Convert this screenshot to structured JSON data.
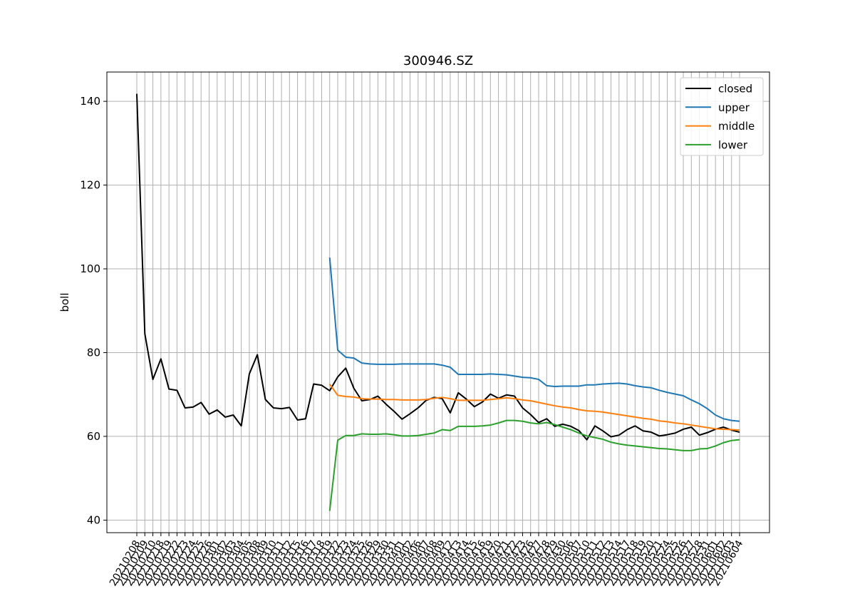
{
  "chart_data": {
    "type": "line",
    "title": "300946.SZ",
    "xlabel": "",
    "ylabel": "boll",
    "ylim": [
      37,
      147
    ],
    "yticks": [
      40,
      60,
      80,
      100,
      120,
      140
    ],
    "grid": true,
    "legend_position": "top-right",
    "x": [
      "20210208",
      "20210209",
      "20210210",
      "20210218",
      "20210219",
      "20210222",
      "20210223",
      "20210224",
      "20210225",
      "20210226",
      "20210301",
      "20210302",
      "20210303",
      "20210304",
      "20210305",
      "20210308",
      "20210309",
      "20210310",
      "20210311",
      "20210312",
      "20210315",
      "20210316",
      "20210317",
      "20210318",
      "20210319",
      "20210322",
      "20210323",
      "20210324",
      "20210325",
      "20210326",
      "20210329",
      "20210330",
      "20210331",
      "20210401",
      "20210402",
      "20210406",
      "20210407",
      "20210408",
      "20210409",
      "20210412",
      "20210413",
      "20210414",
      "20210415",
      "20210416",
      "20210419",
      "20210420",
      "20210421",
      "20210422",
      "20210423",
      "20210426",
      "20210427",
      "20210428",
      "20210429",
      "20210430",
      "20210506",
      "20210507",
      "20210510",
      "20210511",
      "20210512",
      "20210513",
      "20210514",
      "20210517",
      "20210518",
      "20210519",
      "20210520",
      "20210521",
      "20210524",
      "20210525",
      "20210526",
      "20210527",
      "20210528",
      "20210531",
      "20210601",
      "20210602",
      "20210603",
      "20210604"
    ],
    "series": [
      {
        "name": "closed",
        "color": "#000000",
        "values": [
          141.8,
          84.5,
          73.6,
          78.5,
          71.3,
          71.0,
          66.8,
          67.0,
          68.1,
          65.3,
          66.3,
          64.6,
          65.1,
          62.5,
          74.9,
          79.5,
          68.8,
          66.8,
          66.6,
          66.9,
          63.9,
          64.2,
          72.5,
          72.2,
          70.9,
          74.2,
          76.3,
          71.5,
          68.5,
          68.8,
          69.6,
          67.7,
          66.0,
          64.1,
          65.4,
          66.8,
          68.6,
          69.3,
          69.0,
          65.6,
          70.4,
          68.9,
          67.1,
          68.2,
          70.1,
          69.1,
          69.9,
          69.6,
          66.8,
          65.2,
          63.3,
          64.2,
          62.4,
          62.9,
          62.4,
          61.4,
          59.2,
          62.5,
          61.3,
          59.9,
          60.3,
          61.6,
          62.5,
          61.3,
          61.0,
          60.1,
          60.4,
          60.8,
          61.7,
          62.2,
          60.3,
          60.9,
          61.7,
          62.2,
          61.5,
          61.0
        ]
      },
      {
        "name": "upper",
        "color": "#1f77b4",
        "values": [
          null,
          null,
          null,
          null,
          null,
          null,
          null,
          null,
          null,
          null,
          null,
          null,
          null,
          null,
          null,
          null,
          null,
          null,
          null,
          null,
          null,
          null,
          null,
          null,
          102.7,
          80.6,
          78.9,
          78.7,
          77.5,
          77.3,
          77.2,
          77.2,
          77.2,
          77.3,
          77.3,
          77.3,
          77.3,
          77.3,
          77.0,
          76.5,
          74.8,
          74.8,
          74.8,
          74.8,
          74.9,
          74.8,
          74.7,
          74.4,
          74.1,
          74.0,
          73.6,
          72.1,
          71.9,
          72.0,
          72.0,
          72.0,
          72.3,
          72.3,
          72.5,
          72.6,
          72.7,
          72.5,
          72.1,
          71.8,
          71.6,
          71.0,
          70.5,
          70.1,
          69.7,
          68.7,
          67.8,
          66.6,
          65.1,
          64.2,
          63.8,
          63.6
        ]
      },
      {
        "name": "middle",
        "color": "#ff7f0e",
        "values": [
          null,
          null,
          null,
          null,
          null,
          null,
          null,
          null,
          null,
          null,
          null,
          null,
          null,
          null,
          null,
          null,
          null,
          null,
          null,
          null,
          null,
          null,
          null,
          null,
          72.5,
          69.8,
          69.5,
          69.4,
          69.0,
          68.9,
          68.9,
          68.8,
          68.8,
          68.7,
          68.7,
          68.7,
          68.8,
          69.1,
          69.3,
          69.0,
          68.6,
          68.6,
          68.6,
          68.6,
          68.8,
          69.0,
          69.2,
          69.0,
          68.7,
          68.5,
          68.1,
          67.7,
          67.3,
          67.0,
          66.8,
          66.4,
          66.1,
          66.0,
          65.8,
          65.5,
          65.2,
          64.9,
          64.6,
          64.3,
          64.1,
          63.7,
          63.5,
          63.2,
          63.0,
          62.7,
          62.4,
          62.1,
          61.8,
          61.7,
          61.6,
          61.5
        ]
      },
      {
        "name": "lower",
        "color": "#2ca02c",
        "values": [
          null,
          null,
          null,
          null,
          null,
          null,
          null,
          null,
          null,
          null,
          null,
          null,
          null,
          null,
          null,
          null,
          null,
          null,
          null,
          null,
          null,
          null,
          null,
          null,
          42.2,
          59.1,
          60.2,
          60.2,
          60.6,
          60.5,
          60.5,
          60.6,
          60.4,
          60.1,
          60.1,
          60.2,
          60.5,
          60.8,
          61.6,
          61.4,
          62.4,
          62.4,
          62.4,
          62.5,
          62.7,
          63.2,
          63.8,
          63.8,
          63.6,
          63.2,
          63.0,
          63.3,
          62.8,
          62.2,
          61.6,
          60.8,
          60.1,
          59.7,
          59.3,
          58.6,
          58.2,
          57.9,
          57.7,
          57.5,
          57.3,
          57.1,
          57.0,
          56.8,
          56.6,
          56.6,
          57.0,
          57.1,
          57.7,
          58.5,
          59.0,
          59.2
        ]
      }
    ]
  }
}
